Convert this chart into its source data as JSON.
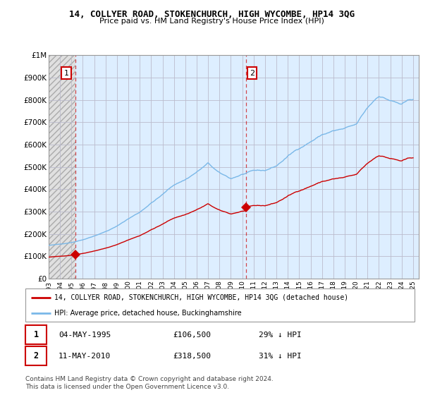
{
  "title": "14, COLLYER ROAD, STOKENCHURCH, HIGH WYCOMBE, HP14 3QG",
  "subtitle": "Price paid vs. HM Land Registry's House Price Index (HPI)",
  "ylim": [
    0,
    1000000
  ],
  "yticks": [
    0,
    100000,
    200000,
    300000,
    400000,
    500000,
    600000,
    700000,
    800000,
    900000,
    1000000
  ],
  "ytick_labels": [
    "£0",
    "£100K",
    "£200K",
    "£300K",
    "£400K",
    "£500K",
    "£600K",
    "£700K",
    "£800K",
    "£900K",
    "£1M"
  ],
  "sale1_date": 1995.34,
  "sale1_price": 106500,
  "sale2_date": 2010.36,
  "sale2_price": 318500,
  "hpi_color": "#7ab8e8",
  "price_color": "#cc0000",
  "vline_color": "#cc0000",
  "hatch_bg": "#e8e8e8",
  "light_blue_bg": "#ddeeff",
  "grid_color": "#bbbbcc",
  "legend_label_price": "14, COLLYER ROAD, STOKENCHURCH, HIGH WYCOMBE, HP14 3QG (detached house)",
  "legend_label_hpi": "HPI: Average price, detached house, Buckinghamshire",
  "note1_num": "1",
  "note1_date": "04-MAY-1995",
  "note1_price": "£106,500",
  "note1_hpi": "29% ↓ HPI",
  "note2_num": "2",
  "note2_date": "11-MAY-2010",
  "note2_price": "£318,500",
  "note2_hpi": "31% ↓ HPI",
  "footer": "Contains HM Land Registry data © Crown copyright and database right 2024.\nThis data is licensed under the Open Government Licence v3.0.",
  "xlim_start": 1993.0,
  "xlim_end": 2025.5
}
